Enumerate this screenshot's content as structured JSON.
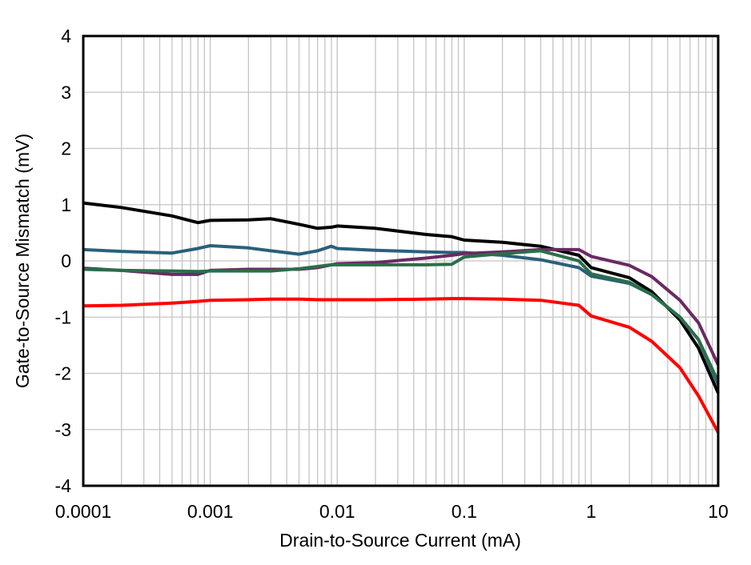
{
  "chart_data": {
    "type": "line",
    "title": "",
    "xlabel": "Drain-to-Source Current (mA)",
    "ylabel": "Gate-to-Source Mismatch (mV)",
    "xscale": "log",
    "xlim": [
      0.0001,
      10
    ],
    "ylim": [
      -4,
      4
    ],
    "grid": true,
    "legend": "none",
    "xticks": [
      "0.0001",
      "0.001",
      "0.01",
      "0.1",
      "1",
      "10"
    ],
    "xtick_values": [
      0.0001,
      0.001,
      0.01,
      0.1,
      1,
      10
    ],
    "yticks": [
      "4",
      "3",
      "2",
      "1",
      "0",
      "-1",
      "-2",
      "-3",
      "-4"
    ],
    "ytick_values": [
      4,
      3,
      2,
      1,
      0,
      -1,
      -2,
      -3,
      -4
    ],
    "x": [
      0.0001,
      0.0002,
      0.0005,
      0.0008,
      0.001,
      0.002,
      0.003,
      0.005,
      0.007,
      0.009,
      0.01,
      0.02,
      0.05,
      0.08,
      0.1,
      0.2,
      0.4,
      0.8,
      1,
      2,
      3,
      5,
      7,
      10
    ],
    "series": [
      {
        "color": "#000000",
        "values": [
          1.03,
          0.95,
          0.8,
          0.68,
          0.72,
          0.73,
          0.75,
          0.65,
          0.58,
          0.6,
          0.62,
          0.58,
          0.47,
          0.43,
          0.37,
          0.33,
          0.26,
          0.1,
          -0.12,
          -0.3,
          -0.55,
          -1.05,
          -1.55,
          -2.35
        ]
      },
      {
        "color": "#2a607a",
        "values": [
          0.2,
          0.17,
          0.14,
          0.22,
          0.27,
          0.23,
          0.18,
          0.12,
          0.18,
          0.26,
          0.22,
          0.19,
          0.16,
          0.15,
          0.15,
          0.1,
          0.02,
          -0.12,
          -0.27,
          -0.4,
          -0.6,
          -1.0,
          -1.4,
          -2.2
        ]
      },
      {
        "color": "#6a2a62",
        "values": [
          -0.13,
          -0.17,
          -0.24,
          -0.24,
          -0.17,
          -0.15,
          -0.15,
          -0.15,
          -0.12,
          -0.07,
          -0.05,
          -0.03,
          0.05,
          0.1,
          0.13,
          0.16,
          0.2,
          0.2,
          0.08,
          -0.08,
          -0.28,
          -0.7,
          -1.1,
          -1.85
        ]
      },
      {
        "color": "#2a6e4a",
        "values": [
          -0.15,
          -0.17,
          -0.18,
          -0.19,
          -0.18,
          -0.18,
          -0.18,
          -0.14,
          -0.1,
          -0.07,
          -0.07,
          -0.07,
          -0.07,
          -0.06,
          0.07,
          0.13,
          0.18,
          0.0,
          -0.23,
          -0.38,
          -0.6,
          -1.0,
          -1.4,
          -2.15
        ]
      },
      {
        "color": "#ff0000",
        "values": [
          -0.8,
          -0.79,
          -0.75,
          -0.72,
          -0.7,
          -0.69,
          -0.68,
          -0.68,
          -0.69,
          -0.69,
          -0.69,
          -0.69,
          -0.68,
          -0.67,
          -0.67,
          -0.68,
          -0.7,
          -0.79,
          -0.98,
          -1.18,
          -1.43,
          -1.9,
          -2.4,
          -3.05
        ]
      }
    ]
  }
}
